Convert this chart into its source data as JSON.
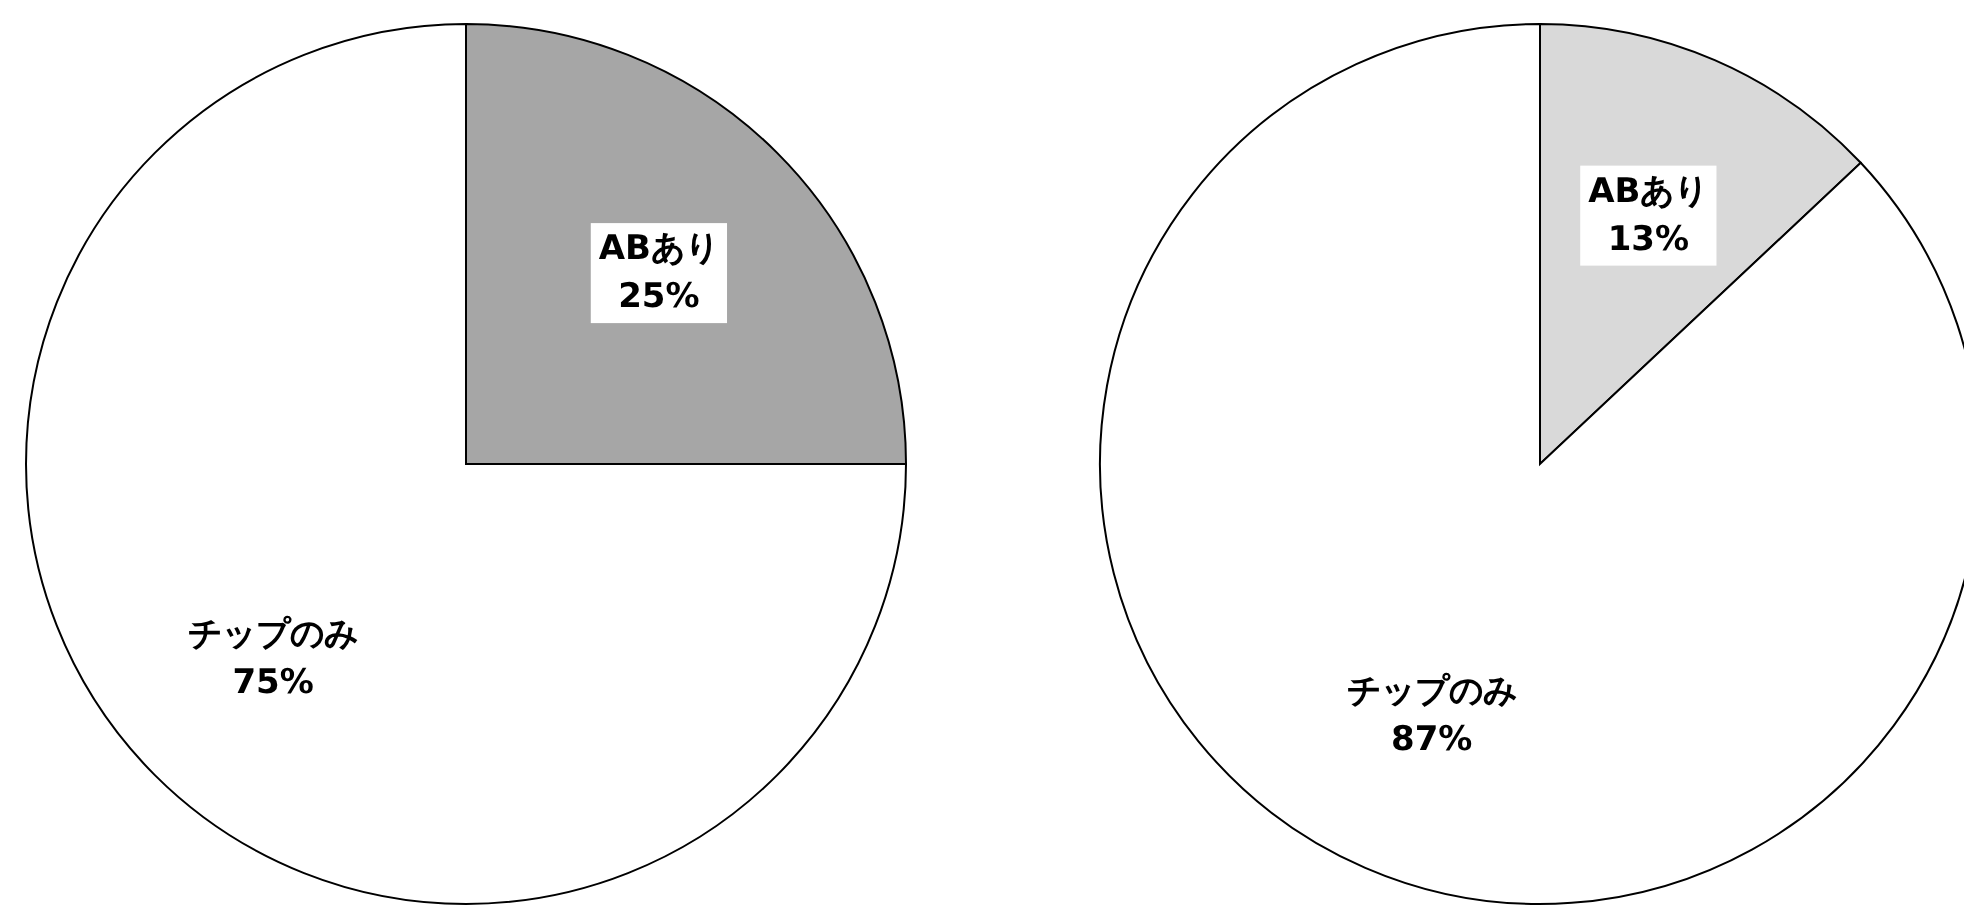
{
  "chart_data": [
    {
      "type": "pie",
      "categories": [
        "ABあり",
        "チップのみ"
      ],
      "values": [
        25,
        75
      ],
      "colors": [
        "#a6a6a6",
        "#ffffff"
      ],
      "value_labels": [
        "25%",
        "75%"
      ]
    },
    {
      "type": "pie",
      "categories": [
        "ABあり",
        "チップのみ"
      ],
      "values": [
        13,
        87
      ],
      "colors": [
        "#d9d9d9",
        "#ffffff"
      ],
      "value_labels": [
        "13%",
        "87%"
      ]
    }
  ]
}
